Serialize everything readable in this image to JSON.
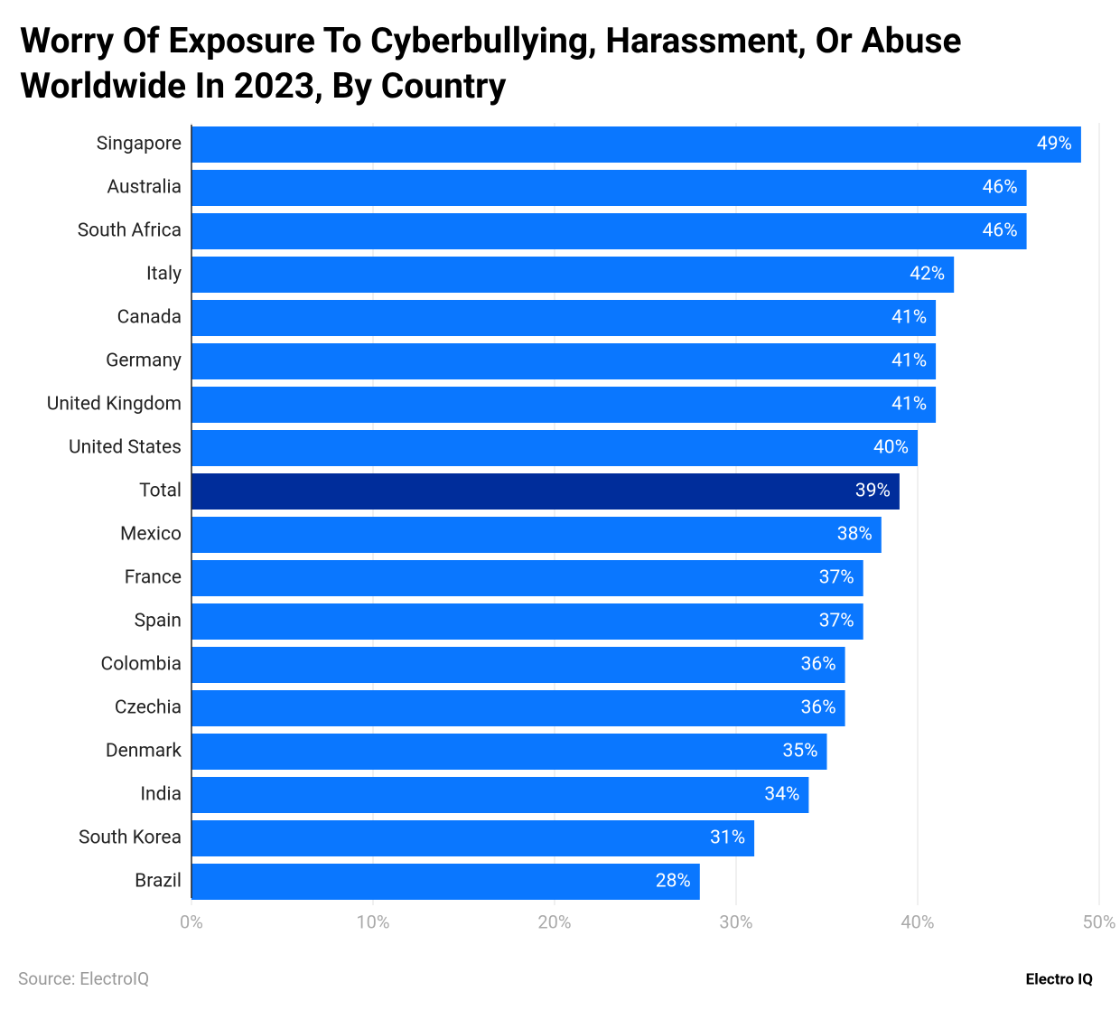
{
  "chart_data": {
    "type": "barh",
    "title": "Worry Of Exposure To Cyberbullying, Harassment, Or Abuse Worldwide In 2023, By Country",
    "categories": [
      "Singapore",
      "Australia",
      "South Africa",
      "Italy",
      "Canada",
      "Germany",
      "United Kingdom",
      "United States",
      "Total",
      "Mexico",
      "France",
      "Spain",
      "Colombia",
      "Czechia",
      "Denmark",
      "India",
      "South Korea",
      "Brazil"
    ],
    "values": [
      49,
      46,
      46,
      42,
      41,
      41,
      41,
      40,
      39,
      38,
      37,
      37,
      36,
      36,
      35,
      34,
      31,
      28
    ],
    "value_labels": [
      "49%",
      "46%",
      "46%",
      "42%",
      "41%",
      "41%",
      "41%",
      "40%",
      "39%",
      "38%",
      "37%",
      "37%",
      "36%",
      "36%",
      "35%",
      "34%",
      "31%",
      "28%"
    ],
    "colors": [
      "#0a77ff",
      "#0a77ff",
      "#0a77ff",
      "#0a77ff",
      "#0a77ff",
      "#0a77ff",
      "#0a77ff",
      "#0a77ff",
      "#002d9b",
      "#0a77ff",
      "#0a77ff",
      "#0a77ff",
      "#0a77ff",
      "#0a77ff",
      "#0a77ff",
      "#0a77ff",
      "#0a77ff",
      "#0a77ff"
    ],
    "xlim": [
      0,
      50
    ],
    "xticks": [
      {
        "value": 0,
        "label": "0%"
      },
      {
        "value": 10,
        "label": "10%"
      },
      {
        "value": 20,
        "label": "20%"
      },
      {
        "value": 30,
        "label": "30%"
      },
      {
        "value": 40,
        "label": "40%"
      },
      {
        "value": 50,
        "label": "50%"
      }
    ],
    "grid": true,
    "source": "Source: ElectroIQ",
    "brand": "Electro IQ"
  }
}
